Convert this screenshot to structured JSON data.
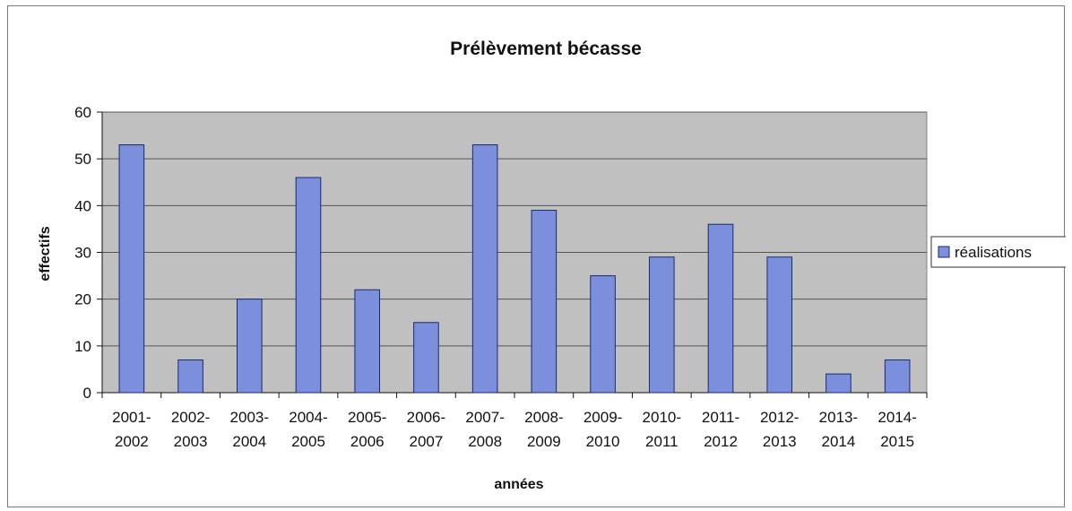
{
  "chart_data": {
    "type": "bar",
    "title": "Prélèvement bécasse",
    "xlabel": "années",
    "ylabel": "effectifs",
    "categories": [
      [
        "2001-",
        "2002"
      ],
      [
        "2002-",
        "2003"
      ],
      [
        "2003-",
        "2004"
      ],
      [
        "2004-",
        "2005"
      ],
      [
        "2005-",
        "2006"
      ],
      [
        "2006-",
        "2007"
      ],
      [
        "2007-",
        "2008"
      ],
      [
        "2008-",
        "2009"
      ],
      [
        "2009-",
        "2010"
      ],
      [
        "2010-",
        "2011"
      ],
      [
        "2011-",
        "2012"
      ],
      [
        "2012-",
        "2013"
      ],
      [
        "2013-",
        "2014"
      ],
      [
        "2014-",
        "2015"
      ]
    ],
    "series": [
      {
        "name": "réalisations",
        "values": [
          53,
          7,
          20,
          46,
          22,
          15,
          53,
          39,
          25,
          29,
          36,
          29,
          4,
          7
        ]
      }
    ],
    "ylim": [
      0,
      60
    ],
    "yticks": [
      "0",
      "10",
      "20",
      "30",
      "40",
      "50",
      "60"
    ],
    "grid": true,
    "legend_position": "right",
    "colors": {
      "bar_fill": "#7b8fdc",
      "bar_stroke": "#1c2a6e",
      "plot_background": "#c0c0c0",
      "gridline": "#555555"
    }
  }
}
